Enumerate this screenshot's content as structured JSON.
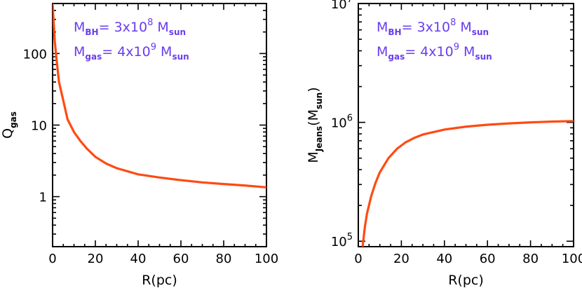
{
  "chart_data": [
    {
      "type": "line",
      "xlabel": "R(pc)",
      "ylabel": {
        "base": "Q",
        "sub": "gas"
      },
      "yscale": "log",
      "xlim": [
        0,
        100
      ],
      "ylim": [
        0.2,
        500
      ],
      "xticks": [
        0,
        20,
        40,
        60,
        80,
        100
      ],
      "yticks": [
        {
          "value": 1,
          "label": "1"
        },
        {
          "value": 10,
          "label": "10"
        },
        {
          "value": 100,
          "label": "100"
        }
      ],
      "annotations": [
        {
          "base": "M",
          "sub": "BH",
          "text": "= 3x10",
          "sup": "8",
          "unit": "M",
          "unit_sub": "sun"
        },
        {
          "base": "M",
          "sub": "gas",
          "text": "= 4x10",
          "sup": "9",
          "unit": "M",
          "unit_sub": "sun"
        }
      ],
      "series": [
        {
          "name": "Q_gas",
          "color": "#ff4a12",
          "x": [
            0,
            1,
            2,
            3,
            5,
            7,
            10,
            13,
            16,
            20,
            25,
            30,
            40,
            50,
            60,
            70,
            80,
            90,
            100
          ],
          "y": [
            500,
            150,
            75,
            40,
            22,
            12,
            8,
            6,
            4.7,
            3.6,
            2.9,
            2.5,
            2.05,
            1.85,
            1.7,
            1.58,
            1.5,
            1.43,
            1.35
          ]
        }
      ]
    },
    {
      "type": "line",
      "xlabel": "R(pc)",
      "ylabel": {
        "base": "M",
        "sub": "Jeans",
        "mid": "(M",
        "sub2": "sun",
        "end": ")"
      },
      "yscale": "log",
      "xlim": [
        0,
        100
      ],
      "ylim": [
        90000,
        10000000
      ],
      "xticks": [
        0,
        20,
        40,
        60,
        80,
        100
      ],
      "yticks": [
        {
          "value": 100000,
          "base": "10",
          "sup": "5"
        },
        {
          "value": 1000000,
          "base": "10",
          "sup": "6"
        },
        {
          "value": 10000000,
          "base": "10",
          "sup": "7"
        }
      ],
      "annotations": [
        {
          "base": "M",
          "sub": "BH",
          "text": "= 3x10",
          "sup": "8",
          "unit": "M",
          "unit_sub": "sun"
        },
        {
          "base": "M",
          "sub": "gas",
          "text": "= 4x10",
          "sup": "9",
          "unit": "M",
          "unit_sub": "sun"
        }
      ],
      "series": [
        {
          "name": "M_Jeans",
          "color": "#ff4a12",
          "x": [
            2,
            3,
            4,
            6,
            8,
            10,
            14,
            18,
            22,
            26,
            30,
            40,
            50,
            60,
            70,
            80,
            90,
            100
          ],
          "y": [
            90000,
            130000,
            170000,
            240000,
            310000,
            380000,
            500000,
            600000,
            680000,
            740000,
            790000,
            870000,
            920000,
            955000,
            980000,
            1000000,
            1015000,
            1025000
          ]
        }
      ]
    }
  ]
}
